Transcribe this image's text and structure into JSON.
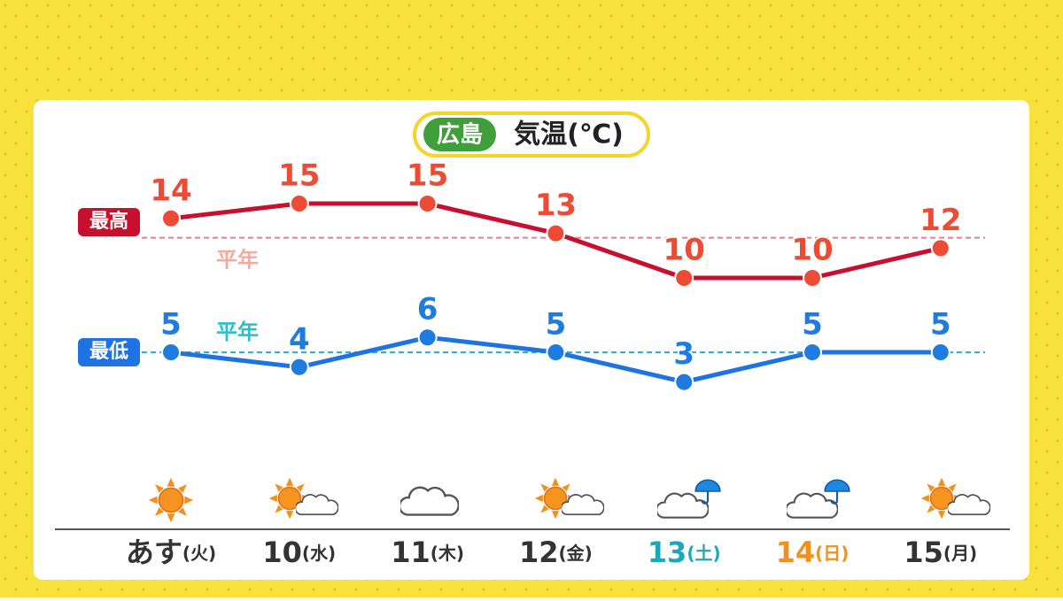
{
  "chart_data": {
    "type": "line",
    "title": "気温(℃)",
    "location": "広島",
    "categories": [
      "あす",
      "10",
      "11",
      "12",
      "13",
      "14",
      "15"
    ],
    "weekdays": [
      "(火)",
      "(水)",
      "(木)",
      "(金)",
      "(土)",
      "(日)",
      "(月)"
    ],
    "category_colors": [
      "#333333",
      "#333333",
      "#333333",
      "#333333",
      "#1aa9b8",
      "#f0901e",
      "#333333"
    ],
    "series": [
      {
        "name": "最高",
        "color": "#c8102e",
        "marker_color": "#ee4b35",
        "values": [
          14,
          15,
          15,
          13,
          10,
          10,
          12
        ]
      },
      {
        "name": "最低",
        "color": "#1e73e3",
        "marker_color": "#1e7be0",
        "values": [
          5,
          4,
          6,
          5,
          3,
          5,
          5
        ]
      }
    ],
    "normals": [
      {
        "label": "平年",
        "value": 12.7,
        "color": "#e87d92",
        "label_color": "#f7a99f"
      },
      {
        "label": "平年",
        "value": 5,
        "color": "#27b4d6",
        "label_color": "#2bc0c9"
      }
    ],
    "ylim": [
      -3,
      17
    ]
  }
}
